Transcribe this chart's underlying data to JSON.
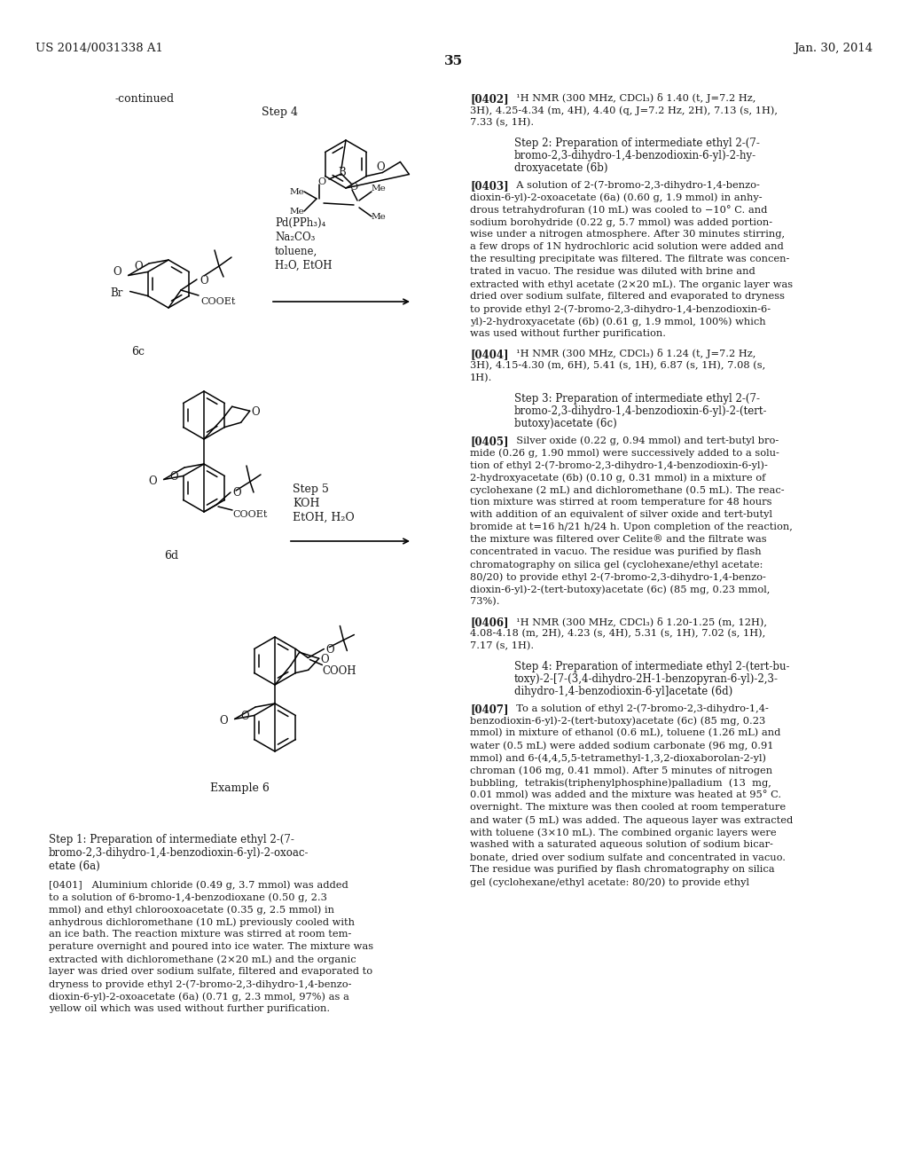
{
  "background_color": "#ffffff",
  "page_number": "35",
  "header_left": "US 2014/0031338 A1",
  "header_right": "Jan. 30, 2014",
  "continued_label": "-continued",
  "step4_label": "Step 4",
  "step5_label": "Step 5",
  "reagents_step4": "Pd(PPh₃)₄\nNa₂CO₃\ntoluene,\nH₂O, EtOH",
  "reagents_step5": "KOH\nEtOH, H₂O",
  "label_6c": "6c",
  "label_6d": "6d",
  "label_example6": "Example 6",
  "step1_title": "Step 1: Preparation of intermediate ethyl 2-(7-\nbromo-2,3-dihydro-1,4-benzodioxin-6-yl)-2-oxoac-\netate (6a)",
  "para_0401": "[0401]   Aluminium chloride (0.49 g, 3.7 mmol) was added\nto a solution of 6-bromo-1,4-benzodioxane (0.50 g, 2.3\nmmol) and ethyl chlorooxoacetate (0.35 g, 2.5 mmol) in\nanhydrous dichloromethane (10 mL) previously cooled with\nan ice bath. The reaction mixture was stirred at room tem-\nperature overnight and poured into ice water. The mixture was\nextracted with dichloromethane (2×20 mL) and the organic\nlayer was dried over sodium sulfate, filtered and evaporated to\ndryness to provide ethyl 2-(7-bromo-2,3-dihydro-1,4-benzo-\ndioxin-6-yl)-2-oxoacetate (6a) (0.71 g, 2.3 mmol, 97%) as a\nyellow oil which was used without further purification.",
  "para_0402_title": "[0402]",
  "para_0402": "  ¹H NMR (300 MHz, CDCl₃) δ 1.40 (t, J=7.2 Hz,\n3H), 4.25-4.34 (m, 4H), 4.40 (q, J=7.2 Hz, 2H), 7.13 (s, 1H),\n7.33 (s, 1H).",
  "step2_title": "Step 2: Preparation of intermediate ethyl 2-(7-\nbromo-2,3-dihydro-1,4-benzodioxin-6-yl)-2-hy-\ndroxyacetate (6b)",
  "para_0403": "[0403]   A solution of 2-(7-bromo-2,3-dihydro-1,4-benzo-\ndioxin-6-yl)-2-oxoacetate (6a) (0.60 g, 1.9 mmol) in anhy-\ndrous tetrahydrofuran (10 mL) was cooled to −10° C. and\nsodium borohydride (0.22 g, 5.7 mmol) was added portion-\nwise under a nitrogen atmosphere. After 30 minutes stirring,\na few drops of 1N hydrochloric acid solution were added and\nthe resulting precipitate was filtered. The filtrate was concen-\ntrated in vacuo. The residue was diluted with brine and\nextracted with ethyl acetate (2×20 mL). The organic layer was\ndried over sodium sulfate, filtered and evaporated to dryness\nto provide ethyl 2-(7-bromo-2,3-dihydro-1,4-benzodioxin-6-\nyl)-2-hydroxyacetate (6b) (0.61 g, 1.9 mmol, 100%) which\nwas used without further purification.",
  "para_0404": "[0404]   ¹H NMR (300 MHz, CDCl₃) δ 1.24 (t, J=7.2 Hz,\n3H), 4.15-4.30 (m, 6H), 5.41 (s, 1H), 6.87 (s, 1H), 7.08 (s,\n1H).",
  "step3_title": "Step 3: Preparation of intermediate ethyl 2-(7-\nbromo-2,3-dihydro-1,4-benzodioxin-6-yl)-2-(tert-\nbutoxy)acetate (6c)",
  "para_0405": "[0405]   Silver oxide (0.22 g, 0.94 mmol) and tert-butyl bro-\nmide (0.26 g, 1.90 mmol) were successively added to a solu-\ntion of ethyl 2-(7-bromo-2,3-dihydro-1,4-benzodioxin-6-yl)-\n2-hydroxyacetate (6b) (0.10 g, 0.31 mmol) in a mixture of\ncyclohexane (2 mL) and dichloromethane (0.5 mL). The reac-\ntion mixture was stirred at room temperature for 48 hours\nwith addition of an equivalent of silver oxide and tert-butyl\nbromide at t=16 h/21 h/24 h. Upon completion of the reaction,\nthe mixture was filtered over Celite® and the filtrate was\nconcentrated in vacuo. The residue was purified by flash\nchromatography on silica gel (cyclohexane/ethyl acetate:\n80/20) to provide ethyl 2-(7-bromo-2,3-dihydro-1,4-benzo-\ndioxin-6-yl)-2-(tert-butoxy)acetate (6c) (85 mg, 0.23 mmol,\n73%).",
  "para_0406": "[0406]   ¹H NMR (300 MHz, CDCl₃) δ 1.20-1.25 (m, 12H),\n4.08-4.18 (m, 2H), 4.23 (s, 4H), 5.31 (s, 1H), 7.02 (s, 1H),\n7.17 (s, 1H).",
  "step4_title": "Step 4: Preparation of intermediate ethyl 2-(tert-bu-\ntoxy)-2-[7-(3,4-dihydro-2H-1-benzopyran-6-yl)-2,3-\ndihydro-1,4-benzodioxin-6-yl]acetate (6d)",
  "para_0407": "[0407]   To a solution of ethyl 2-(7-bromo-2,3-dihydro-1,4-\nbenzodioxin-6-yl)-2-(tert-butoxy)acetate (6c) (85 mg, 0.23\nmmol) in mixture of ethanol (0.6 mL), toluene (1.26 mL) and\nwater (0.5 mL) were added sodium carbonate (96 mg, 0.91\nmmol) and 6-(4,4,5,5-tetramethyl-1,3,2-dioxaborolan-2-yl)\nchroman (106 mg, 0.41 mmol). After 5 minutes of nitrogen\nbubbling,  tetrakis(triphenylphosphine)palladium  (13  mg,\n0.01 mmol) was added and the mixture was heated at 95° C.\novernight. The mixture was then cooled at room temperature\nand water (5 mL) was added. The aqueous layer was extracted\nwith toluene (3×10 mL). The combined organic layers were\nwashed with a saturated aqueous solution of sodium bicar-\nbonate, dried over sodium sulfate and concentrated in vacuo.\nThe residue was purified by flash chromatography on silica\ngel (cyclohexane/ethyl acetate: 80/20) to provide ethyl"
}
